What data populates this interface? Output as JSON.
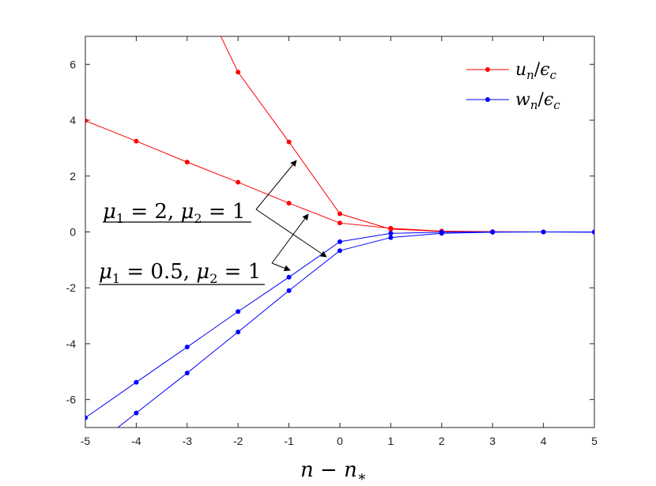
{
  "chart_data": {
    "type": "line",
    "xlabel": "n − n*",
    "ylabel": "",
    "xlim": [
      -5,
      5
    ],
    "ylim": [
      -7,
      7
    ],
    "x_ticks": [
      "-5",
      "-4",
      "-3",
      "-2",
      "-1",
      "0",
      "1",
      "2",
      "3",
      "4",
      "5"
    ],
    "y_ticks": [
      "-6",
      "-4",
      "-2",
      "0",
      "2",
      "4",
      "6"
    ],
    "grid": false,
    "legend_position": "top-right",
    "series": [
      {
        "name": "un/εc",
        "group": "μ1 = 2, μ2 = 1",
        "color": "#ff0000",
        "x": [
          -3,
          -2,
          -1,
          0,
          1,
          2,
          3,
          4,
          5
        ],
        "y": [
          9.5,
          5.72,
          3.22,
          0.65,
          0.1,
          0.02,
          0.0,
          0.0,
          0.0
        ]
      },
      {
        "name": "un/εc",
        "group": "μ1 = 0.5, μ2 = 1",
        "color": "#ff0000",
        "x": [
          -5,
          -4,
          -3,
          -2,
          -1,
          0,
          1,
          2,
          3,
          4,
          5
        ],
        "y": [
          3.98,
          3.25,
          2.5,
          1.78,
          1.03,
          0.32,
          0.13,
          0.03,
          0.01,
          0.0,
          0.0
        ]
      },
      {
        "name": "wn/εc",
        "group": "μ1 = 0.5, μ2 = 1",
        "color": "#0000ff",
        "x": [
          -5,
          -4,
          -3,
          -2,
          -1,
          0,
          1,
          2,
          3,
          4,
          5
        ],
        "y": [
          -6.65,
          -5.38,
          -4.12,
          -2.85,
          -1.62,
          -0.35,
          -0.05,
          -0.01,
          0.0,
          0.0,
          0.0
        ]
      },
      {
        "name": "wn/εc",
        "group": "μ1 = 2, μ2 = 1",
        "color": "#0000ff",
        "x": [
          -4.5,
          -4,
          -3,
          -2,
          -1,
          0,
          1,
          2,
          3,
          4,
          5
        ],
        "y": [
          -7.2,
          -6.48,
          -5.05,
          -3.58,
          -2.1,
          -0.67,
          -0.2,
          -0.05,
          -0.01,
          0.0,
          -0.01
        ]
      }
    ],
    "legend": [
      {
        "label": "un/εc",
        "color": "#ff0000"
      },
      {
        "label": "wn/εc",
        "color": "#0000ff"
      }
    ],
    "annotations": [
      {
        "label": "μ1 = 2, μ2 = 1"
      },
      {
        "label": "μ1 = 0.5, μ2 = 1"
      }
    ]
  }
}
